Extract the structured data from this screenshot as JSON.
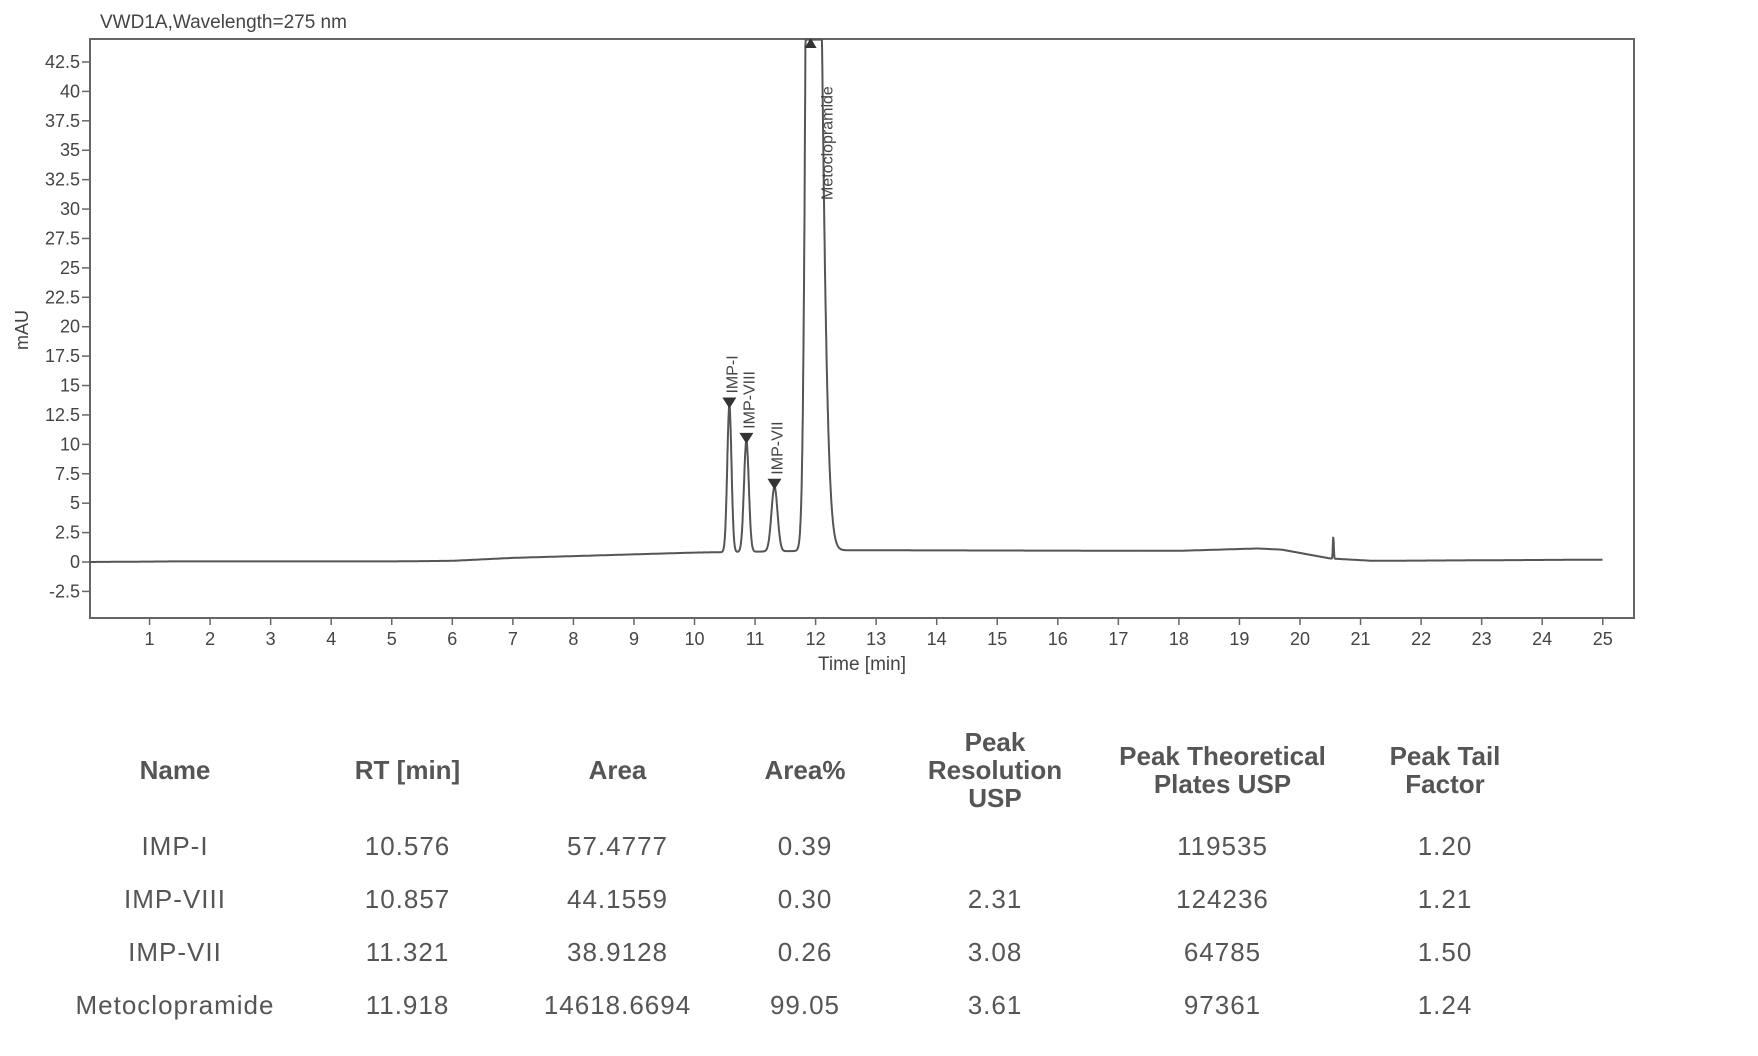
{
  "chart_data": {
    "type": "line",
    "title": "VWD1A,Wavelength=275 nm",
    "xlabel": "Time [min]",
    "ylabel": "mAU",
    "xlim": [
      0,
      25.5
    ],
    "ylim": [
      -4.8,
      44.4
    ],
    "xticks": [
      1,
      2,
      3,
      4,
      5,
      6,
      7,
      8,
      9,
      10,
      11,
      12,
      13,
      14,
      15,
      16,
      17,
      18,
      19,
      20,
      21,
      22,
      23,
      24,
      25
    ],
    "yticks": [
      -2.5,
      0,
      2.5,
      5,
      7.5,
      10,
      12.5,
      15,
      17.5,
      20,
      22.5,
      25,
      27.5,
      30,
      32.5,
      35,
      37.5,
      40,
      42.5
    ],
    "ytick_labels": [
      "-2.5",
      "0",
      "2.5",
      "5",
      "7.5",
      "10",
      "12.5",
      "15",
      "17.5",
      "20",
      "22.5",
      "25",
      "27.5",
      "30",
      "32.5",
      "35",
      "37.5",
      "40",
      "42.5"
    ],
    "grid": false,
    "line_color": "#555555",
    "baseline": [
      [
        0,
        0
      ],
      [
        1.4,
        0.05
      ],
      [
        2.6,
        0.05
      ],
      [
        5,
        0.05
      ],
      [
        6,
        0.1
      ],
      [
        7,
        0.35
      ],
      [
        8,
        0.5
      ],
      [
        10,
        0.8
      ],
      [
        12.5,
        1.0
      ],
      [
        18,
        0.95
      ],
      [
        19.3,
        1.15
      ],
      [
        19.7,
        1.05
      ],
      [
        20.5,
        0.3
      ],
      [
        21.2,
        0.1
      ],
      [
        25,
        0.2
      ]
    ],
    "peaks": [
      {
        "name": "IMP-I",
        "rt": 10.576,
        "height": 13.3
      },
      {
        "name": "IMP-VIII",
        "rt": 10.857,
        "height": 10.3
      },
      {
        "name": "IMP-VII",
        "rt": 11.321,
        "height": 6.4
      },
      {
        "name": "Metoclopramide",
        "rt": 11.918,
        "height": 44.4
      }
    ],
    "spike": {
      "rt": 20.55,
      "height": 2.1
    }
  },
  "table": {
    "headers": [
      "Name",
      "RT [min]",
      "Area",
      "Area%",
      "Peak Resolution USP",
      "Peak Theoretical Plates USP",
      "Peak Tail Factor"
    ],
    "rows": [
      [
        "IMP-I",
        "10.576",
        "57.4777",
        "0.39",
        "",
        "119535",
        "1.20"
      ],
      [
        "IMP-VIII",
        "10.857",
        "44.1559",
        "0.30",
        "2.31",
        "124236",
        "1.21"
      ],
      [
        "IMP-VII",
        "11.321",
        "38.9128",
        "0.26",
        "3.08",
        "64785",
        "1.50"
      ],
      [
        "Metoclopramide",
        "11.918",
        "14618.6694",
        "99.05",
        "3.61",
        "97361",
        "1.24"
      ]
    ]
  }
}
